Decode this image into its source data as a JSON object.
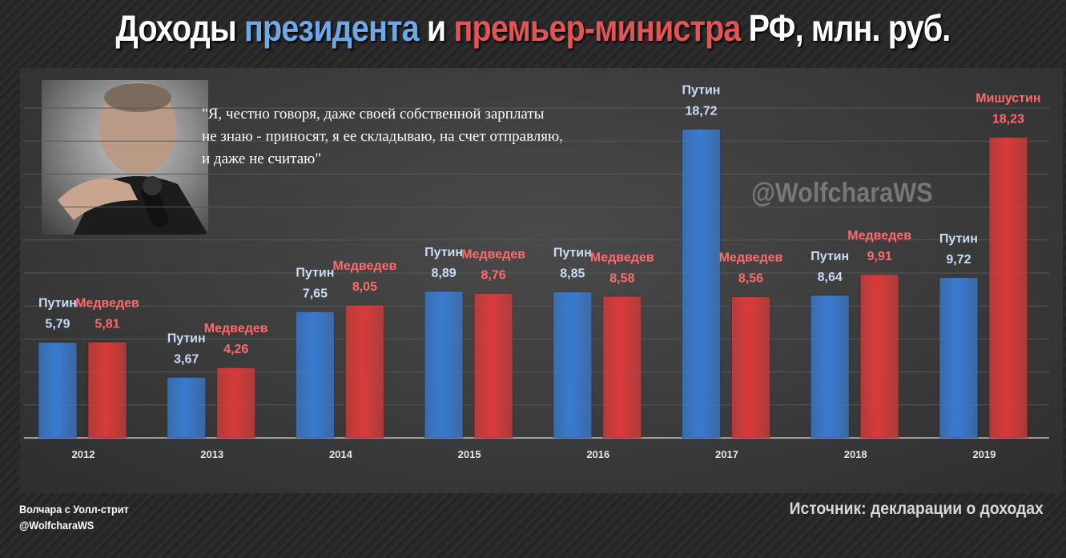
{
  "title": {
    "part1": "Доходы ",
    "part2": "президента",
    "part3": " и ",
    "part4": "премьер-министра",
    "part5": " РФ, млн. руб."
  },
  "quote": "\"Я, честно говоря, даже своей собственной зарплаты\nне знаю - приносят, я ее складываю, на счет отправляю,\nи даже не считаю\"",
  "watermark": "@WolfcharaWS",
  "footer": {
    "line1": "Волчара с Уолл-стрит",
    "line2": "@WolfcharaWS",
    "source": "Источник: декларации о доходах"
  },
  "colors": {
    "president": "#3a7bd0",
    "premier": "#d93b3b",
    "president_label": "#c9dcf5",
    "premier_label": "#ff6b6b"
  },
  "chart_data": {
    "type": "bar",
    "categories": [
      "2012",
      "2013",
      "2014",
      "2015",
      "2016",
      "2017",
      "2018",
      "2019"
    ],
    "series": [
      {
        "role": "president",
        "labels": [
          "Путин",
          "Путин",
          "Путин",
          "Путин",
          "Путин",
          "Путин",
          "Путин",
          "Путин"
        ],
        "values": [
          5.79,
          3.67,
          7.65,
          8.89,
          8.85,
          18.72,
          8.64,
          9.72
        ],
        "value_labels": [
          "5,79",
          "3,67",
          "7,65",
          "8,89",
          "8,85",
          "18,72",
          "8,64",
          "9,72"
        ]
      },
      {
        "role": "premier",
        "labels": [
          "Медведев",
          "Медведев",
          "Медведев",
          "Медведев",
          "Медведев",
          "Медведев",
          "Медведев",
          "Мишустин"
        ],
        "values": [
          5.81,
          4.26,
          8.05,
          8.76,
          8.58,
          8.56,
          9.91,
          18.23
        ],
        "value_labels": [
          "5,81",
          "4,26",
          "8,05",
          "8,76",
          "8,58",
          "8,56",
          "9,91",
          "18,23"
        ]
      }
    ],
    "ylim": [
      0,
      20
    ],
    "grid": true,
    "legend": "none"
  }
}
